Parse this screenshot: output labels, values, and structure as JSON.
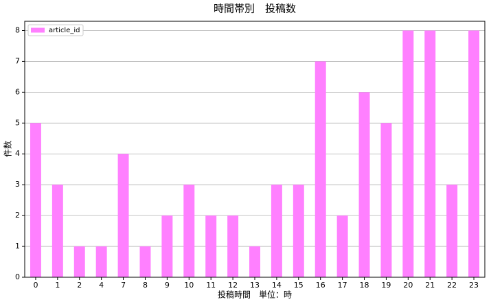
{
  "chart_data": {
    "type": "bar",
    "title": "時間帯別　投稿数",
    "x_label": "投稿時間　単位：時",
    "y_label": "件数",
    "categories": [
      "0",
      "1",
      "2",
      "4",
      "7",
      "8",
      "9",
      "10",
      "11",
      "12",
      "13",
      "14",
      "15",
      "16",
      "17",
      "18",
      "19",
      "20",
      "21",
      "22",
      "23"
    ],
    "series": [
      {
        "name": "article_id",
        "color": "#ff80ff",
        "values": [
          5,
          3,
          1,
          1,
          4,
          1,
          2,
          3,
          2,
          2,
          1,
          3,
          3,
          7,
          2,
          6,
          5,
          8,
          8,
          3,
          8
        ]
      }
    ],
    "ylim": [
      0,
      8.3
    ],
    "yticks": [
      0,
      1,
      2,
      3,
      4,
      5,
      6,
      7,
      8
    ],
    "grid": true,
    "legend": "upper-left"
  }
}
